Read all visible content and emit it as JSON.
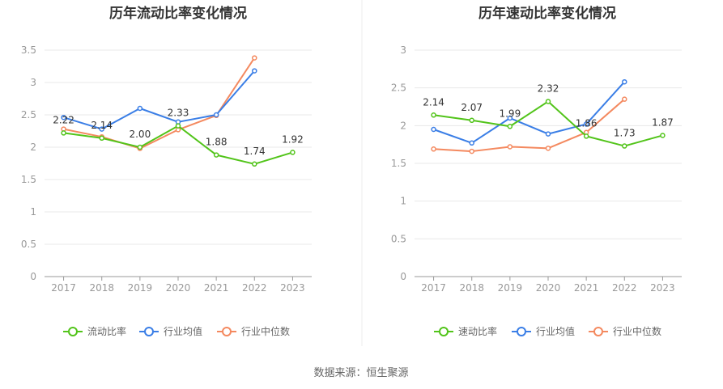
{
  "source": "数据来源：恒生聚源",
  "colors": {
    "ratio": "#52c41a",
    "industry_avg": "#3a7ee6",
    "industry_median": "#f4895f",
    "grid": "#e8e8e8",
    "axis": "#999999"
  },
  "chart_data": [
    {
      "type": "line",
      "title": "历年流动比率变化情况",
      "categories": [
        "2017",
        "2018",
        "2019",
        "2020",
        "2021",
        "2022",
        "2023"
      ],
      "ylim": [
        0,
        3.5
      ],
      "yticks": [
        "0",
        "0.5",
        "1",
        "1.5",
        "2",
        "2.5",
        "3",
        "3.5"
      ],
      "grid": true,
      "legend_position": "bottom",
      "series": [
        {
          "name": "流动比率",
          "key": "ratio",
          "values": [
            2.22,
            2.14,
            2.0,
            2.33,
            1.88,
            1.74,
            1.92
          ],
          "labels": [
            "2.22",
            "2.14",
            "2.00",
            "2.33",
            "1.88",
            "1.74",
            "1.92"
          ]
        },
        {
          "name": "行业均值",
          "key": "industry_avg",
          "values": [
            2.46,
            2.28,
            2.6,
            2.39,
            2.5,
            3.18,
            null
          ],
          "labels": []
        },
        {
          "name": "行业中位数",
          "key": "industry_median",
          "values": [
            2.28,
            2.16,
            1.98,
            2.27,
            2.49,
            3.38,
            null
          ],
          "labels": []
        }
      ]
    },
    {
      "type": "line",
      "title": "历年速动比率变化情况",
      "categories": [
        "2017",
        "2018",
        "2019",
        "2020",
        "2021",
        "2022",
        "2023"
      ],
      "ylim": [
        0,
        3
      ],
      "yticks": [
        "0",
        "0.5",
        "1",
        "1.5",
        "2",
        "2.5",
        "3"
      ],
      "grid": true,
      "legend_position": "bottom",
      "series": [
        {
          "name": "速动比率",
          "key": "ratio",
          "values": [
            2.14,
            2.07,
            1.99,
            2.32,
            1.86,
            1.73,
            1.87
          ],
          "labels": [
            "2.14",
            "2.07",
            "1.99",
            "2.32",
            "1.86",
            "1.73",
            "1.87"
          ]
        },
        {
          "name": "行业均值",
          "key": "industry_avg",
          "values": [
            1.95,
            1.77,
            2.1,
            1.89,
            2.02,
            2.58,
            null
          ],
          "labels": []
        },
        {
          "name": "行业中位数",
          "key": "industry_median",
          "values": [
            1.69,
            1.66,
            1.72,
            1.7,
            1.91,
            2.35,
            null
          ],
          "labels": []
        }
      ]
    }
  ]
}
